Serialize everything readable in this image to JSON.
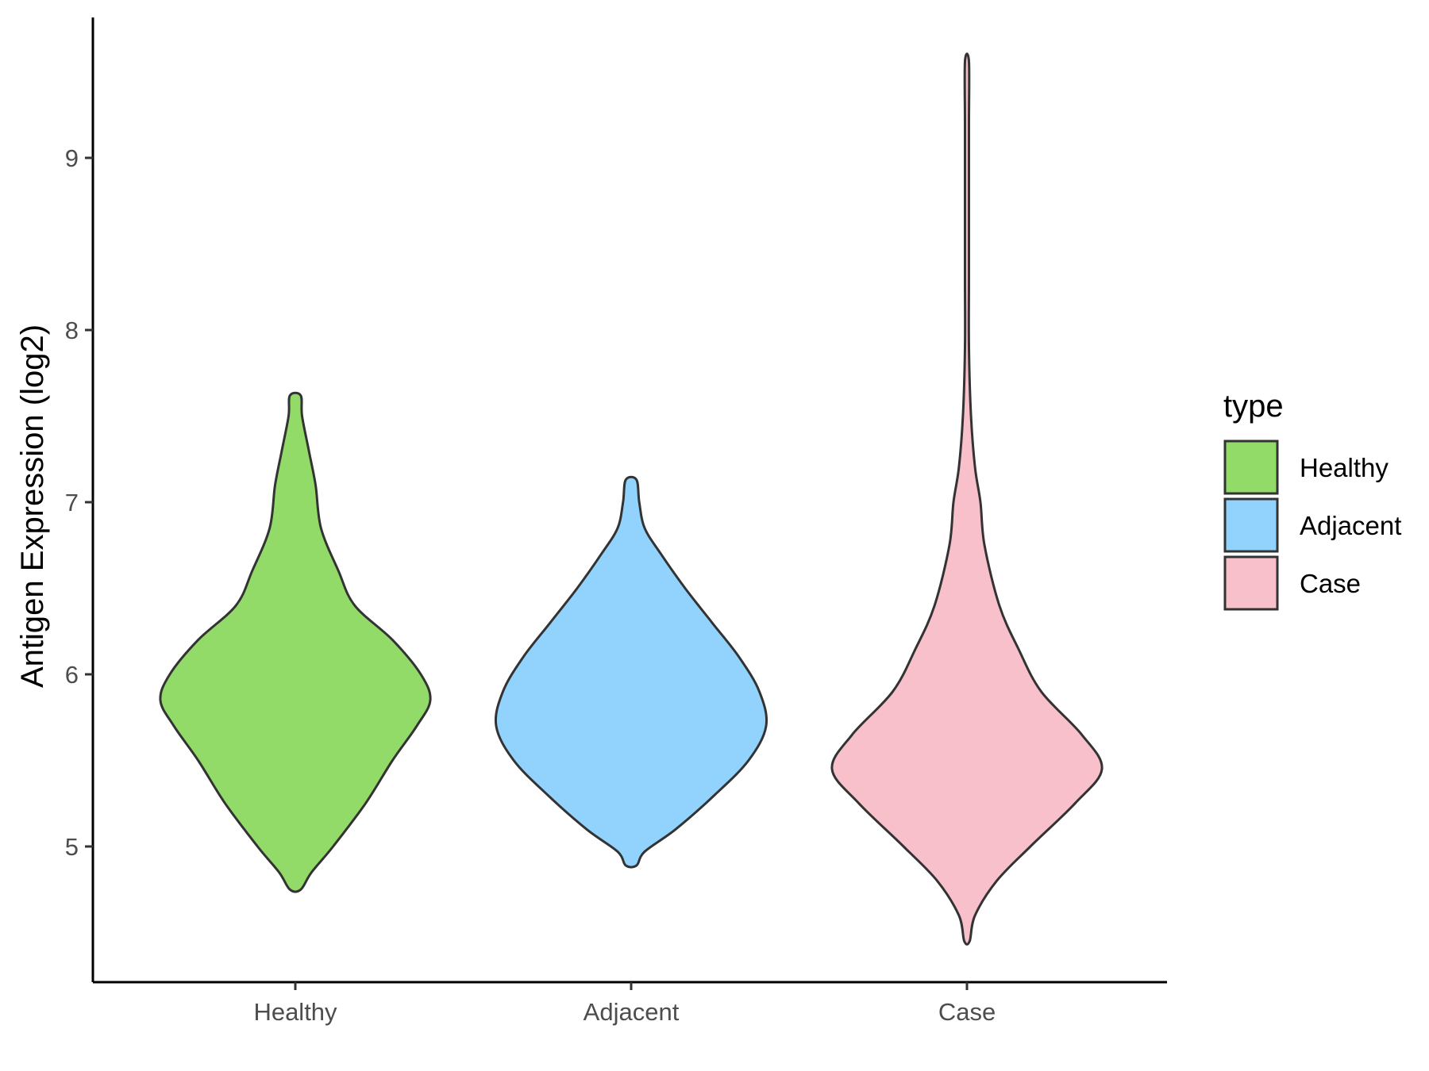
{
  "chart_data": {
    "type": "violin",
    "title": "",
    "xlabel": "",
    "ylabel": "Antigen Expression (log2)",
    "categories": [
      "Healthy",
      "Adjacent",
      "Case"
    ],
    "yticks": [
      5,
      6,
      7,
      8,
      9
    ],
    "ylim": [
      4.3,
      9.8
    ],
    "grid": false,
    "legend": {
      "title": "type",
      "placement": "right",
      "entries": [
        "Healthy",
        "Adjacent",
        "Case"
      ]
    },
    "colors": {
      "Healthy": "#93DB69",
      "Adjacent": "#92D3FE",
      "Case": "#F7C0CB",
      "outline": "#333333"
    },
    "series": [
      {
        "name": "Healthy",
        "min": 4.75,
        "max": 7.62,
        "density": [
          [
            4.75,
            0.04
          ],
          [
            4.85,
            0.12
          ],
          [
            5.0,
            0.28
          ],
          [
            5.25,
            0.52
          ],
          [
            5.5,
            0.72
          ],
          [
            5.7,
            0.9
          ],
          [
            5.85,
            1.0
          ],
          [
            6.0,
            0.93
          ],
          [
            6.2,
            0.72
          ],
          [
            6.4,
            0.44
          ],
          [
            6.6,
            0.32
          ],
          [
            6.85,
            0.19
          ],
          [
            7.1,
            0.15
          ],
          [
            7.3,
            0.1
          ],
          [
            7.5,
            0.05
          ],
          [
            7.62,
            0.04
          ]
        ]
      },
      {
        "name": "Adjacent",
        "min": 4.89,
        "max": 7.13,
        "density": [
          [
            4.89,
            0.04
          ],
          [
            4.97,
            0.1
          ],
          [
            5.1,
            0.33
          ],
          [
            5.3,
            0.62
          ],
          [
            5.5,
            0.87
          ],
          [
            5.7,
            1.0
          ],
          [
            5.9,
            0.95
          ],
          [
            6.1,
            0.8
          ],
          [
            6.3,
            0.6
          ],
          [
            6.5,
            0.4
          ],
          [
            6.7,
            0.22
          ],
          [
            6.85,
            0.1
          ],
          [
            7.0,
            0.06
          ],
          [
            7.13,
            0.04
          ]
        ]
      },
      {
        "name": "Case",
        "min": 4.45,
        "max": 9.56,
        "density": [
          [
            4.45,
            0.02
          ],
          [
            4.6,
            0.06
          ],
          [
            4.8,
            0.22
          ],
          [
            5.0,
            0.47
          ],
          [
            5.25,
            0.8
          ],
          [
            5.45,
            1.0
          ],
          [
            5.65,
            0.85
          ],
          [
            5.9,
            0.55
          ],
          [
            6.15,
            0.38
          ],
          [
            6.4,
            0.24
          ],
          [
            6.75,
            0.13
          ],
          [
            7.0,
            0.1
          ],
          [
            7.2,
            0.06
          ],
          [
            7.5,
            0.03
          ],
          [
            7.9,
            0.01
          ],
          [
            8.3,
            0.008
          ],
          [
            8.8,
            0.01
          ],
          [
            9.2,
            0.007
          ],
          [
            9.56,
            0.006
          ]
        ]
      }
    ]
  }
}
